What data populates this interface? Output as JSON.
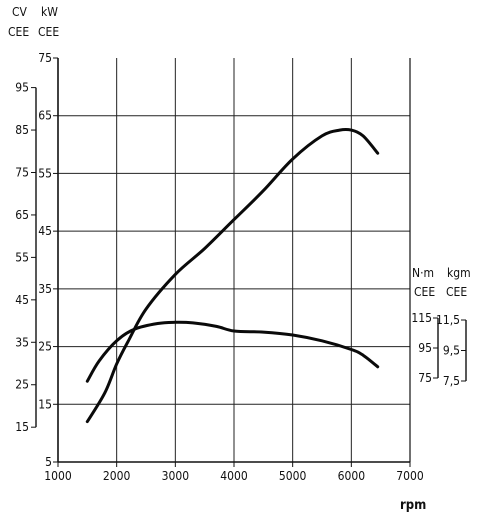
{
  "chart_data": {
    "type": "line",
    "xlabel": "rpm",
    "x_ticks": [
      1000,
      2000,
      3000,
      4000,
      5000,
      6000,
      7000
    ],
    "xlim": [
      1000,
      7000
    ],
    "grid": true,
    "axes": {
      "power_kw": {
        "header": [
          "kW",
          "CEE"
        ],
        "ticks": [
          5,
          15,
          25,
          35,
          45,
          55,
          65,
          75
        ],
        "range": [
          5,
          75
        ]
      },
      "power_cv": {
        "header": [
          "CV",
          "CEE"
        ],
        "ticks": [
          15,
          25,
          35,
          45,
          55,
          65,
          75,
          85,
          95
        ]
      },
      "torque_nm": {
        "header": [
          "N·m",
          "CEE"
        ],
        "ticks": [
          75,
          95,
          115
        ]
      },
      "torque_kgm": {
        "header": [
          "kgm",
          "CEE"
        ],
        "ticks": [
          7.5,
          9.5,
          11.5
        ]
      }
    },
    "series": [
      {
        "axis": "power_kw",
        "x": [
          1500,
          1800,
          2000,
          2200,
          2500,
          3000,
          3500,
          4000,
          4500,
          5000,
          5500,
          5800,
          6000,
          6200,
          6450
        ],
        "y": [
          12,
          17,
          22,
          26,
          31.5,
          37.5,
          42,
          47,
          52,
          57.5,
          61.5,
          62.5,
          62.5,
          61.5,
          58.5
        ]
      },
      {
        "axis": "power_kw",
        "x": [
          1500,
          1700,
          2000,
          2300,
          2700,
          3000,
          3300,
          3700,
          4000,
          4500,
          5000,
          5500,
          6000,
          6200,
          6450
        ],
        "y": [
          19,
          22.5,
          26,
          28,
          29,
          29.2,
          29.1,
          28.5,
          27.7,
          27.5,
          27,
          26,
          24.5,
          23.5,
          21.5
        ]
      }
    ]
  }
}
